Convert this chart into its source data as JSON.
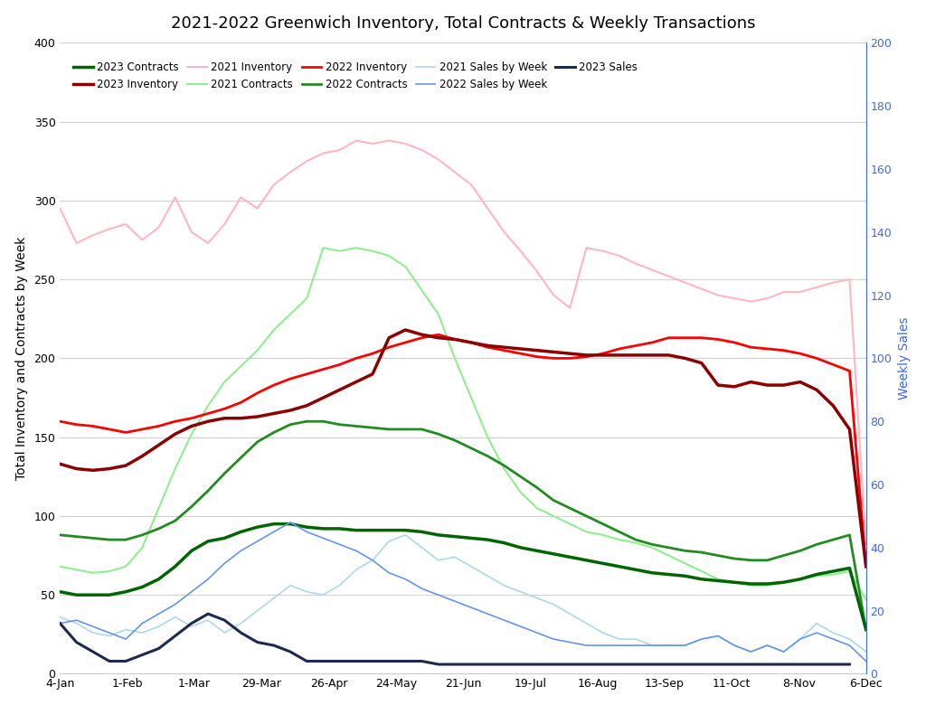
{
  "title": "2021-2022 Greenwich Inventory, Total Contracts & Weekly Transactions",
  "x_labels": [
    "4-Jan",
    "1-Feb",
    "1-Mar",
    "29-Mar",
    "26-Apr",
    "24-May",
    "21-Jun",
    "19-Jul",
    "16-Aug",
    "13-Sep",
    "11-Oct",
    "8-Nov",
    "6-Dec"
  ],
  "ylabel_left": "Total Inventory and Contracts by Week",
  "ylabel_right": "Weekly Sales",
  "ylim_left": [
    0,
    400
  ],
  "ylim_right": [
    0,
    200
  ],
  "yticks_left": [
    0,
    50,
    100,
    150,
    200,
    250,
    300,
    350,
    400
  ],
  "yticks_right": [
    0,
    20,
    40,
    60,
    80,
    100,
    120,
    140,
    160,
    180,
    200
  ],
  "series": {
    "2021_inventory": {
      "label": "2021 Inventory",
      "color": "#ffb6c1",
      "linewidth": 1.5,
      "axis": "left",
      "values": [
        295,
        273,
        278,
        282,
        285,
        275,
        283,
        302,
        280,
        273,
        285,
        302,
        295,
        310,
        318,
        325,
        330,
        332,
        338,
        336,
        338,
        336,
        332,
        326,
        318,
        310,
        295,
        280,
        268,
        255,
        240,
        232,
        270,
        268,
        265,
        260,
        256,
        252,
        248,
        244,
        240,
        238,
        236,
        238,
        242,
        242,
        245,
        248,
        250,
        82
      ]
    },
    "2022_inventory": {
      "label": "2022 Inventory",
      "color": "#ff0000",
      "linewidth": 2.0,
      "axis": "left",
      "values": [
        160,
        158,
        157,
        155,
        153,
        155,
        157,
        160,
        162,
        165,
        168,
        172,
        178,
        183,
        187,
        190,
        193,
        196,
        200,
        203,
        207,
        210,
        213,
        215,
        212,
        210,
        207,
        205,
        203,
        201,
        200,
        200,
        201,
        203,
        206,
        208,
        210,
        213,
        213,
        213,
        212,
        210,
        207,
        206,
        205,
        203,
        200,
        196,
        192,
        68
      ]
    },
    "2023_inventory": {
      "label": "2023 Inventory",
      "color": "#8b0000",
      "linewidth": 2.5,
      "axis": "left",
      "values": [
        133,
        130,
        129,
        130,
        132,
        138,
        145,
        152,
        157,
        160,
        162,
        162,
        163,
        165,
        167,
        170,
        175,
        180,
        185,
        190,
        213,
        218,
        215,
        213,
        212,
        210,
        208,
        207,
        206,
        205,
        204,
        203,
        202,
        202,
        202,
        202,
        202,
        202,
        200,
        197,
        183,
        182,
        185,
        183,
        183,
        185,
        180,
        170,
        155,
        68
      ]
    },
    "2021_contracts": {
      "label": "2021 Contracts",
      "color": "#90ee90",
      "linewidth": 1.5,
      "axis": "left",
      "values": [
        68,
        66,
        64,
        65,
        68,
        80,
        105,
        130,
        152,
        170,
        185,
        195,
        205,
        218,
        228,
        238,
        270,
        268,
        270,
        268,
        265,
        258,
        243,
        228,
        200,
        175,
        150,
        130,
        115,
        105,
        100,
        95,
        90,
        88,
        85,
        83,
        80,
        75,
        70,
        65,
        60,
        58,
        56,
        56,
        58,
        60,
        62,
        63,
        65,
        47
      ]
    },
    "2022_contracts": {
      "label": "2022 Contracts",
      "color": "#228b22",
      "linewidth": 2.0,
      "axis": "left",
      "values": [
        88,
        87,
        86,
        85,
        85,
        88,
        92,
        97,
        106,
        116,
        127,
        137,
        147,
        153,
        158,
        160,
        160,
        158,
        157,
        156,
        155,
        155,
        155,
        152,
        148,
        143,
        138,
        132,
        125,
        118,
        110,
        105,
        100,
        95,
        90,
        85,
        82,
        80,
        78,
        77,
        75,
        73,
        72,
        72,
        75,
        78,
        82,
        85,
        88,
        28
      ]
    },
    "2023_contracts": {
      "label": "2023 Contracts",
      "color": "#006400",
      "linewidth": 2.5,
      "axis": "left",
      "values": [
        52,
        50,
        50,
        50,
        52,
        55,
        60,
        68,
        78,
        84,
        86,
        90,
        93,
        95,
        95,
        93,
        92,
        92,
        91,
        91,
        91,
        91,
        90,
        88,
        87,
        86,
        85,
        83,
        80,
        78,
        76,
        74,
        72,
        70,
        68,
        66,
        64,
        63,
        62,
        60,
        59,
        58,
        57,
        57,
        58,
        60,
        63,
        65,
        67,
        28
      ]
    },
    "2021_sales": {
      "label": "2021 Sales by Week",
      "color": "#add8e6",
      "linewidth": 1.2,
      "axis": "right",
      "values": [
        18,
        16,
        13,
        12,
        14,
        13,
        15,
        18,
        15,
        17,
        13,
        16,
        20,
        24,
        28,
        26,
        25,
        28,
        33,
        36,
        42,
        44,
        40,
        36,
        37,
        34,
        31,
        28,
        26,
        24,
        22,
        19,
        16,
        13,
        11,
        11,
        9,
        9,
        9,
        11,
        12,
        9,
        7,
        9,
        7,
        11,
        16,
        13,
        11,
        7
      ]
    },
    "2022_sales": {
      "label": "2022 Sales by Week",
      "color": "#6495ed",
      "linewidth": 1.2,
      "axis": "right",
      "values": [
        16,
        17,
        15,
        13,
        11,
        16,
        19,
        22,
        26,
        30,
        35,
        39,
        42,
        45,
        48,
        45,
        43,
        41,
        39,
        36,
        32,
        30,
        27,
        25,
        23,
        21,
        19,
        17,
        15,
        13,
        11,
        10,
        9,
        9,
        9,
        9,
        9,
        9,
        9,
        11,
        12,
        9,
        7,
        9,
        7,
        11,
        13,
        11,
        9,
        4
      ]
    },
    "2023_sales": {
      "label": "2023 Sales",
      "color": "#1c2951",
      "linewidth": 2.2,
      "axis": "right",
      "values": [
        16,
        10,
        7,
        4,
        4,
        6,
        8,
        12,
        16,
        19,
        17,
        13,
        10,
        9,
        7,
        4,
        4,
        4,
        4,
        4,
        4,
        4,
        4,
        3,
        3,
        3,
        3,
        3,
        3,
        3,
        3,
        3,
        3,
        3,
        3,
        3,
        3,
        3,
        3,
        3,
        3,
        3,
        3,
        3,
        3,
        3,
        3,
        3,
        3,
        null
      ]
    }
  }
}
